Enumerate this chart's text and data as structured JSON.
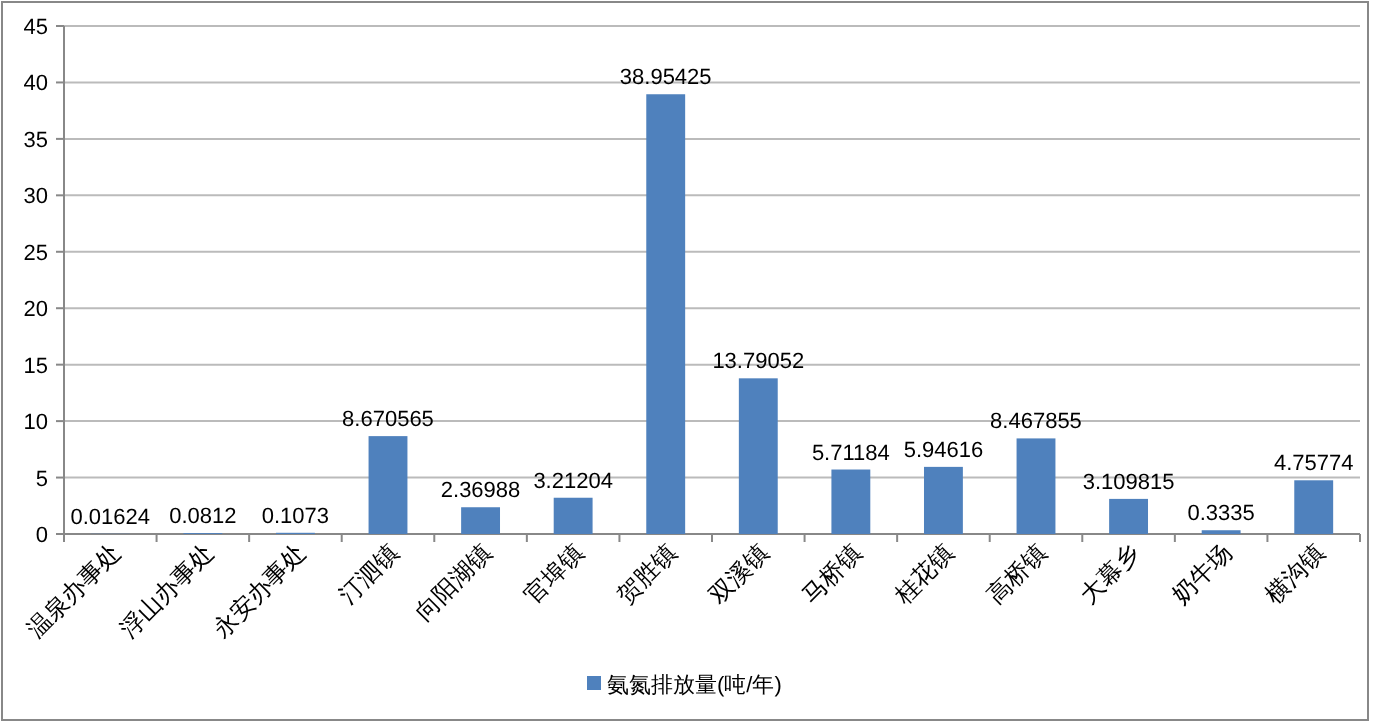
{
  "chart_data": {
    "type": "bar",
    "categories": [
      "温泉办事处",
      "浮山办事处",
      "永安办事处",
      "汀泗镇",
      "向阳湖镇",
      "官埠镇",
      "贺胜镇",
      "双溪镇",
      "马桥镇",
      "桂花镇",
      "高桥镇",
      "大幕乡",
      "奶牛场",
      "横沟镇"
    ],
    "series": [
      {
        "name": "氨氮排放量(吨/年)",
        "color": "#4f81bd",
        "values": [
          0.01624,
          0.0812,
          0.1073,
          8.670565,
          2.36988,
          3.21204,
          38.95425,
          13.79052,
          5.71184,
          5.94616,
          8.467855,
          3.109815,
          0.3335,
          4.75774
        ]
      }
    ],
    "ylim": [
      0,
      45
    ],
    "yticks": [
      0,
      5,
      10,
      15,
      20,
      25,
      30,
      35,
      40,
      45
    ],
    "grid": "y",
    "legend": "bottom",
    "data_labels": true
  }
}
